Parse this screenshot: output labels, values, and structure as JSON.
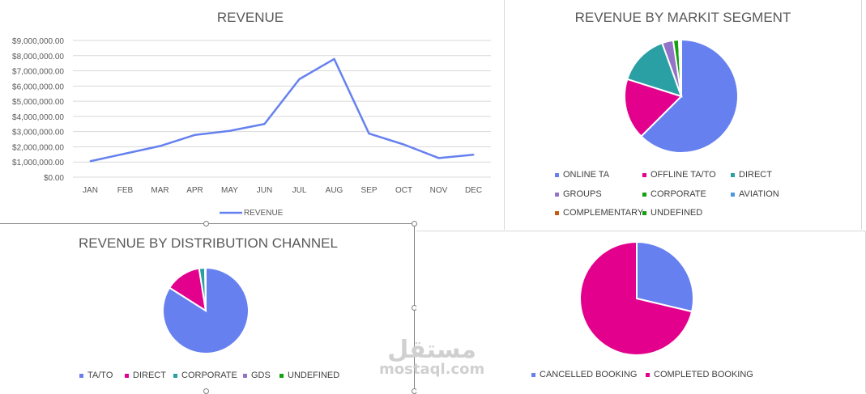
{
  "chart_data": [
    {
      "type": "line",
      "title": "REVENUE",
      "categories": [
        "JAN",
        "FEB",
        "MAR",
        "APR",
        "MAY",
        "JUN",
        "JUL",
        "AUG",
        "SEP",
        "OCT",
        "NOV",
        "DEC"
      ],
      "series": [
        {
          "name": "REVENUE",
          "values": [
            1050000,
            1550000,
            2050000,
            2780000,
            3050000,
            3500000,
            6450000,
            7780000,
            2870000,
            2150000,
            1260000,
            1480000
          ],
          "color": "#6681ef"
        }
      ],
      "ylim": [
        0,
        9000000
      ],
      "yticks": [
        "$0.00",
        "$1,000,000.00",
        "$2,000,000.00",
        "$3,000,000.00",
        "$4,000,000.00",
        "$5,000,000.00",
        "$6,000,000.00",
        "$7,000,000.00",
        "$8,000,000.00",
        "$9,000,000.00"
      ],
      "legend_position": "bottom"
    },
    {
      "type": "pie",
      "title": "REVENUE BY MARKIT SEGMENT",
      "labels": [
        "ONLINE TA",
        "OFFLINE TA/TO",
        "DIRECT",
        "GROUPS",
        "CORPORATE",
        "AVIATION",
        "COMPLEMENTARY",
        "UNDEFINED"
      ],
      "values": [
        62.5,
        17.4,
        14.6,
        3.2,
        1.6,
        0.3,
        0.2,
        0.2
      ],
      "colors": [
        "#6681ef",
        "#e3008c",
        "#2aa0a4",
        "#9373c7",
        "#13a10e",
        "#4f98e0",
        "#c55a11",
        "#13a10e"
      ],
      "legend_position": "bottom"
    },
    {
      "type": "pie",
      "title": "REVENUE BY DISTRIBUTION CHANNEL",
      "labels": [
        "TA/TO",
        "DIRECT",
        "CORPORATE",
        "GDS",
        "UNDEFINED"
      ],
      "values": [
        84.0,
        13.5,
        2.2,
        0.2,
        0.1
      ],
      "colors": [
        "#6681ef",
        "#e3008c",
        "#2aa0a4",
        "#9373c7",
        "#13a10e"
      ],
      "legend_position": "bottom"
    },
    {
      "type": "pie",
      "title": "",
      "labels": [
        "CANCELLED BOOKING",
        "COMPLETED BOOKING"
      ],
      "values": [
        28.7,
        71.3
      ],
      "colors": [
        "#6681ef",
        "#e3008c"
      ],
      "legend_position": "bottom"
    }
  ],
  "watermark": {
    "arabic": "مستقل",
    "latin": "mostaql.com"
  }
}
